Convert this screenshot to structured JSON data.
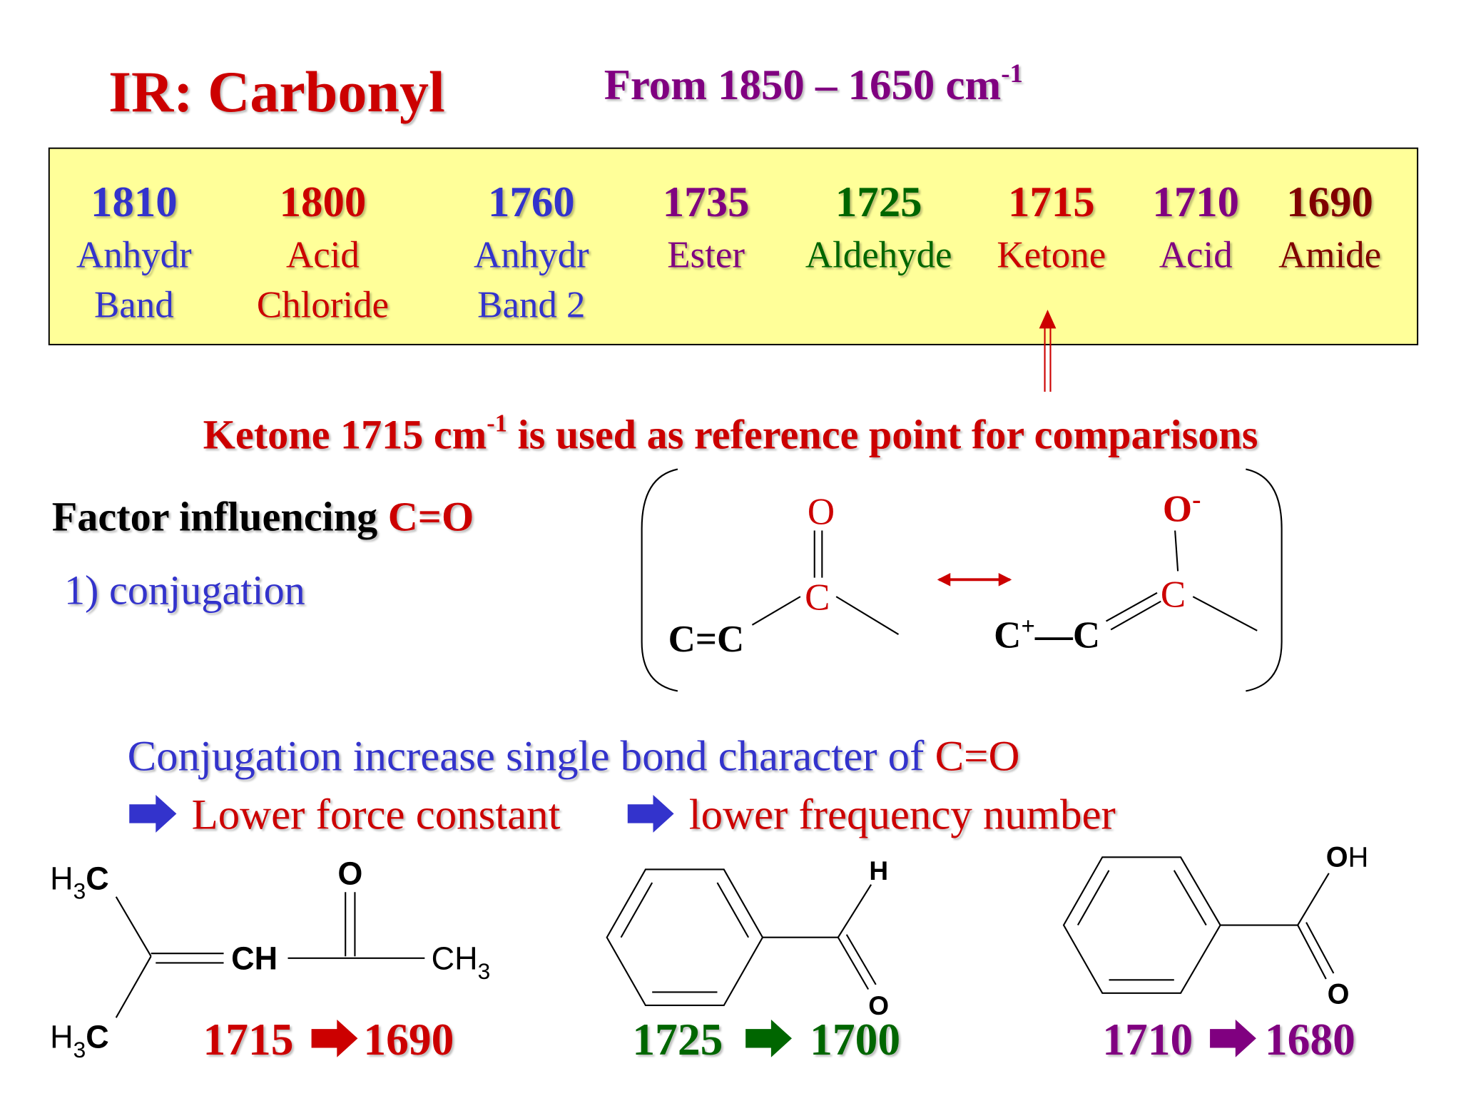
{
  "header": {
    "title": "IR: Carbonyl",
    "range": "From 1850 – 1650 cm",
    "range_sup": "-1"
  },
  "table": {
    "columns": [
      {
        "value": "1810",
        "lines": [
          "Anhydr",
          "Band"
        ]
      },
      {
        "value": "1800",
        "lines": [
          "Acid",
          "Chloride"
        ]
      },
      {
        "value": "1760",
        "lines": [
          "Anhydr",
          "Band 2"
        ]
      },
      {
        "value": "1735",
        "lines": [
          "Ester"
        ]
      },
      {
        "value": "1725",
        "lines": [
          "Aldehyde"
        ]
      },
      {
        "value": "1715",
        "lines": [
          "Ketone"
        ]
      },
      {
        "value": "1710",
        "lines": [
          "Acid"
        ]
      },
      {
        "value": "1690",
        "lines": [
          "Amide"
        ]
      }
    ]
  },
  "reference": {
    "lead": "Ketone 1715 cm",
    "sup": "-1",
    "rest": " is used as reference point for comparisons"
  },
  "factor": {
    "heading": "Factor influencing ",
    "group": "C=O",
    "item": "1) conjugation"
  },
  "resonance": {
    "left": {
      "o": "O",
      "c": "C",
      "cc": "C=C"
    },
    "right": {
      "o": "O",
      "charge": "-",
      "c": "C",
      "c1": "C",
      "plus": "+",
      "bond": "—",
      "c2": "C"
    }
  },
  "explanation": {
    "line1": "Conjugation increase single bond character of ",
    "group": "C=O",
    "step1": "Lower force constant",
    "step2": "lower frequency number"
  },
  "molecules": [
    {
      "labels": {
        "top_h": "H",
        "top_3": "3",
        "top_c": "C",
        "bot_h": "H",
        "bot_3": "3",
        "bot_c": "C",
        "ch": "CH",
        "o": "O",
        "ch3_c": "CH",
        "ch3_3": "3"
      },
      "from": "1715",
      "to": "1690"
    },
    {
      "labels": {
        "h": "H",
        "o": "O"
      },
      "from": "1725",
      "to": "1700"
    },
    {
      "labels": {
        "oh_o": "O",
        "oh_h": "H",
        "o": "O"
      },
      "from": "1710",
      "to": "1680"
    }
  ]
}
